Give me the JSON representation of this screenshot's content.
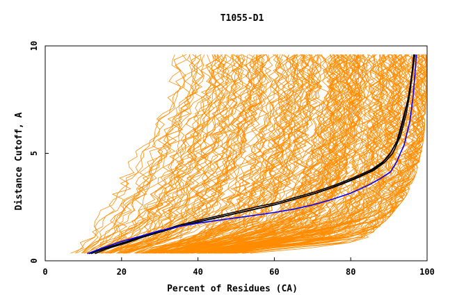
{
  "chart_data": {
    "type": "line",
    "title": "T1055-D1",
    "xlabel": "Percent of Residues (CA)",
    "ylabel": "Distance Cutoff, A",
    "xlim": [
      0,
      100
    ],
    "ylim": [
      0,
      10
    ],
    "x_ticks": [
      "0",
      "20",
      "40",
      "60",
      "80",
      "100"
    ],
    "y_ticks": [
      "0",
      "5",
      "10"
    ],
    "grid": false,
    "colors": {
      "background_models": "#ff8c00",
      "highlight_black": "#000000",
      "highlight_blue": "#0000ff"
    },
    "band": {
      "description": "approx. envelope of the many orange model curves",
      "x_left": [
        4.7,
        6.6,
        9.5,
        13.0,
        16.5,
        20.0,
        23.0,
        26.5,
        29.5,
        30.0
      ],
      "x_right": [
        70.0,
        84.0,
        90.0,
        94.5,
        97.0,
        98.5,
        99.3,
        99.6,
        99.8,
        99.8
      ],
      "y": [
        0.4,
        1.0,
        2.0,
        3.0,
        4.0,
        5.0,
        6.0,
        7.0,
        8.0,
        9.6
      ]
    },
    "series": [
      {
        "color": "#000000",
        "x": [
          11.5,
          15,
          20,
          25,
          30,
          35,
          40,
          45,
          50,
          55,
          60,
          65,
          70,
          75,
          80,
          85,
          88,
          90,
          92,
          93.5,
          95,
          96,
          96.5
        ],
        "y": [
          0.33,
          0.55,
          0.8,
          1.1,
          1.35,
          1.6,
          1.8,
          2.0,
          2.2,
          2.4,
          2.6,
          2.85,
          3.1,
          3.4,
          3.75,
          4.15,
          4.5,
          4.9,
          5.5,
          6.5,
          7.5,
          8.6,
          9.6
        ]
      },
      {
        "color": "#000000",
        "x": [
          13,
          16,
          21,
          26,
          31,
          36,
          41,
          46,
          51,
          56,
          61,
          66,
          71,
          76,
          81,
          86,
          89,
          91,
          93,
          94.5,
          95.5,
          96.2,
          96.8
        ],
        "y": [
          0.33,
          0.55,
          0.82,
          1.12,
          1.38,
          1.65,
          1.85,
          2.05,
          2.25,
          2.45,
          2.65,
          2.9,
          3.15,
          3.45,
          3.8,
          4.2,
          4.6,
          5.0,
          5.8,
          6.8,
          7.8,
          8.8,
          9.6
        ]
      },
      {
        "color": "#000000",
        "x": [
          12,
          15.5,
          20.5,
          25.5,
          30.5,
          35.5,
          40.5,
          45.5,
          50.5,
          55.5,
          60.5,
          65.5,
          70.5,
          75.5,
          80.5,
          85.5,
          88.5,
          90.5,
          92.5,
          94,
          95.2,
          96,
          96.6
        ],
        "y": [
          0.33,
          0.58,
          0.85,
          1.15,
          1.4,
          1.68,
          1.9,
          2.1,
          2.3,
          2.52,
          2.7,
          2.95,
          3.2,
          3.5,
          3.85,
          4.25,
          4.62,
          5.05,
          5.7,
          6.7,
          7.7,
          8.7,
          9.6
        ]
      },
      {
        "color": "#0000ff",
        "x": [
          11,
          15,
          20,
          25,
          30,
          35,
          40,
          45,
          50,
          55,
          60,
          65,
          70,
          75,
          80,
          85,
          88,
          90.5,
          92,
          94,
          95.5,
          96.3,
          96.8,
          97.2
        ],
        "y": [
          0.33,
          0.6,
          0.9,
          1.15,
          1.4,
          1.6,
          1.75,
          1.88,
          2.0,
          2.12,
          2.25,
          2.4,
          2.6,
          2.85,
          3.15,
          3.55,
          3.85,
          4.15,
          4.6,
          5.4,
          6.5,
          7.6,
          8.6,
          9.6
        ]
      }
    ]
  }
}
